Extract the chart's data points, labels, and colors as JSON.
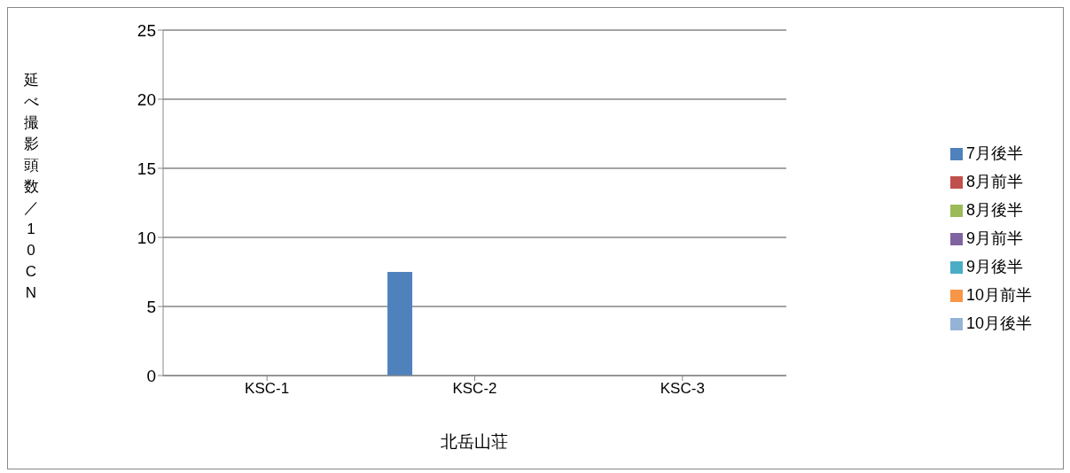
{
  "chart_data": {
    "type": "bar",
    "xlabel": "北岳山荘",
    "ylabel": "延べ撮影頭数／10CN",
    "categories": [
      "KSC-1",
      "KSC-2",
      "KSC-3"
    ],
    "series": [
      {
        "name": "7月後半",
        "color": "#4f81bd",
        "values": [
          0,
          7.5,
          0
        ]
      },
      {
        "name": "8月前半",
        "color": "#c0504d",
        "values": [
          0,
          0,
          0
        ]
      },
      {
        "name": "8月後半",
        "color": "#9bbb59",
        "values": [
          0,
          0,
          0
        ]
      },
      {
        "name": "9月前半",
        "color": "#8064a2",
        "values": [
          0,
          0,
          0
        ]
      },
      {
        "name": "9月後半",
        "color": "#4bacc6",
        "values": [
          0,
          0,
          0
        ]
      },
      {
        "name": "10月前半",
        "color": "#f79646",
        "values": [
          0,
          0,
          0
        ]
      },
      {
        "name": "10月後半",
        "color": "#95b3d7",
        "values": [
          0,
          0,
          0
        ]
      }
    ],
    "ylim": [
      0,
      25
    ],
    "yticks": [
      0,
      5,
      10,
      15,
      20,
      25
    ],
    "grid": "y",
    "legend": "right"
  }
}
